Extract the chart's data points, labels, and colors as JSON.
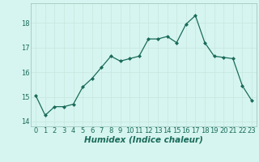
{
  "x": [
    0,
    1,
    2,
    3,
    4,
    5,
    6,
    7,
    8,
    9,
    10,
    11,
    12,
    13,
    14,
    15,
    16,
    17,
    18,
    19,
    20,
    21,
    22,
    23
  ],
  "y": [
    15.05,
    14.25,
    14.6,
    14.6,
    14.7,
    15.4,
    15.75,
    16.2,
    16.65,
    16.45,
    16.55,
    16.65,
    17.35,
    17.35,
    17.45,
    17.2,
    17.95,
    18.3,
    17.2,
    16.65,
    16.6,
    16.55,
    15.45,
    14.85
  ],
  "line_color": "#1a6b5a",
  "marker": "D",
  "marker_size": 2.0,
  "bg_color": "#d6f5f0",
  "grid_color": "#c8e8e0",
  "xlabel": "Humidex (Indice chaleur)",
  "ylim": [
    13.8,
    18.8
  ],
  "xlim": [
    -0.5,
    23.5
  ],
  "yticks": [
    14,
    15,
    16,
    17,
    18
  ],
  "xticks": [
    0,
    1,
    2,
    3,
    4,
    5,
    6,
    7,
    8,
    9,
    10,
    11,
    12,
    13,
    14,
    15,
    16,
    17,
    18,
    19,
    20,
    21,
    22,
    23
  ],
  "tick_fontsize": 6.0,
  "xlabel_fontsize": 7.5,
  "spine_color": "#a0c8c0"
}
